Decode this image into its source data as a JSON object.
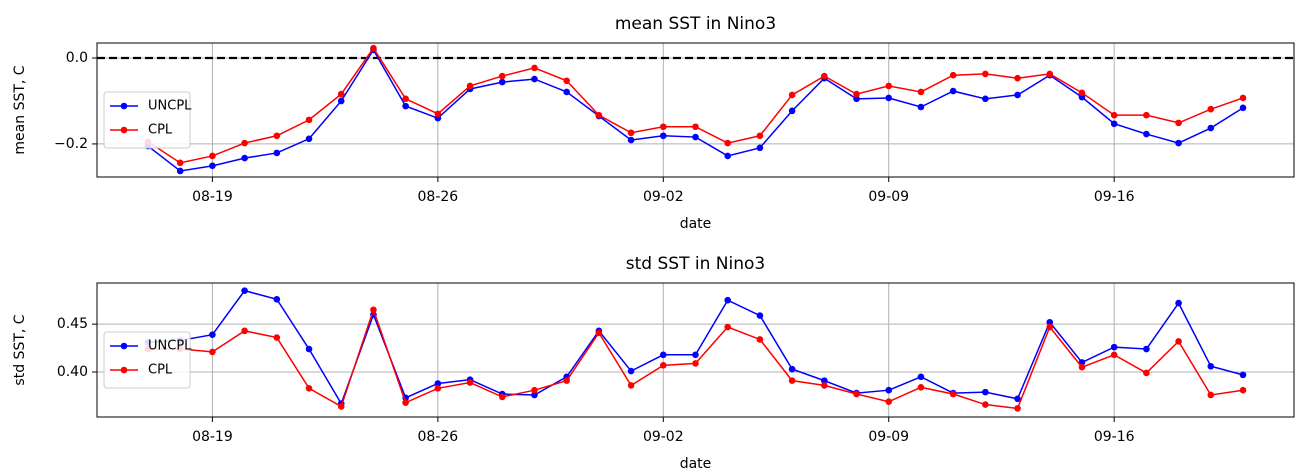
{
  "chart_data": [
    {
      "type": "line",
      "title": "mean SST in  Nino3",
      "xlabel": "date",
      "ylabel": "mean SST, C",
      "categories": [
        "08-17",
        "08-18",
        "08-19",
        "08-20",
        "08-21",
        "08-22",
        "08-23",
        "08-24",
        "08-25",
        "08-26",
        "08-27",
        "08-28",
        "08-29",
        "08-30",
        "08-31",
        "09-01",
        "09-02",
        "09-03",
        "09-04",
        "09-05",
        "09-06",
        "09-07",
        "09-08",
        "09-09",
        "09-10",
        "09-11",
        "09-12",
        "09-13",
        "09-14",
        "09-15",
        "09-16",
        "09-17",
        "09-18",
        "09-19",
        "09-20"
      ],
      "xticks": [
        "08-19",
        "08-26",
        "09-02",
        "09-09",
        "09-16"
      ],
      "series": [
        {
          "name": "UNCPL",
          "color": "#0000ff",
          "values": [
            -0.205,
            -0.263,
            -0.251,
            -0.233,
            -0.221,
            -0.188,
            -0.1,
            0.019,
            -0.112,
            -0.14,
            -0.072,
            -0.056,
            -0.049,
            -0.079,
            -0.135,
            -0.191,
            -0.181,
            -0.184,
            -0.228,
            -0.209,
            -0.123,
            -0.047,
            -0.095,
            -0.093,
            -0.114,
            -0.077,
            -0.095,
            -0.086,
            -0.04,
            -0.091,
            -0.153,
            -0.177,
            -0.198,
            -0.163,
            -0.116
          ]
        },
        {
          "name": "CPL",
          "color": "#ff0000",
          "values": [
            -0.195,
            -0.244,
            -0.228,
            -0.198,
            -0.181,
            -0.144,
            -0.084,
            0.023,
            -0.095,
            -0.13,
            -0.065,
            -0.042,
            -0.023,
            -0.053,
            -0.133,
            -0.174,
            -0.16,
            -0.16,
            -0.198,
            -0.181,
            -0.086,
            -0.042,
            -0.084,
            -0.065,
            -0.079,
            -0.04,
            -0.037,
            -0.047,
            -0.037,
            -0.081,
            -0.133,
            -0.133,
            -0.151,
            -0.119,
            -0.093
          ]
        }
      ],
      "ylim": [
        -0.277,
        0.035
      ],
      "yticks": [
        {
          "value": -0.2,
          "label": "−0.2"
        },
        {
          "value": 0,
          "label": "0.0"
        }
      ],
      "hline": 0,
      "grid": true,
      "legend": "center left"
    },
    {
      "type": "line",
      "title": "std SST in  Nino3",
      "xlabel": "date",
      "ylabel": "std SST, C",
      "categories": [
        "08-17",
        "08-18",
        "08-19",
        "08-20",
        "08-21",
        "08-22",
        "08-23",
        "08-24",
        "08-25",
        "08-26",
        "08-27",
        "08-28",
        "08-29",
        "08-30",
        "08-31",
        "09-01",
        "09-02",
        "09-03",
        "09-04",
        "09-05",
        "09-06",
        "09-07",
        "09-08",
        "09-09",
        "09-10",
        "09-11",
        "09-12",
        "09-13",
        "09-14",
        "09-15",
        "09-16",
        "09-17",
        "09-18",
        "09-19",
        "09-20"
      ],
      "xticks": [
        "08-19",
        "08-26",
        "09-02",
        "09-09",
        "09-16"
      ],
      "series": [
        {
          "name": "UNCPL",
          "color": "#0000ff",
          "values": [
            0.431,
            0.433,
            0.439,
            0.485,
            0.476,
            0.424,
            0.367,
            0.46,
            0.373,
            0.388,
            0.392,
            0.377,
            0.376,
            0.395,
            0.443,
            0.401,
            0.418,
            0.418,
            0.475,
            0.459,
            0.403,
            0.391,
            0.378,
            0.381,
            0.395,
            0.378,
            0.379,
            0.372,
            0.452,
            0.41,
            0.426,
            0.424,
            0.472,
            0.406,
            0.397
          ]
        },
        {
          "name": "CPL",
          "color": "#ff0000",
          "values": [
            0.424,
            0.424,
            0.421,
            0.443,
            0.436,
            0.383,
            0.364,
            0.465,
            0.368,
            0.383,
            0.389,
            0.374,
            0.381,
            0.391,
            0.441,
            0.386,
            0.407,
            0.409,
            0.447,
            0.434,
            0.391,
            0.386,
            0.377,
            0.369,
            0.384,
            0.377,
            0.366,
            0.362,
            0.447,
            0.405,
            0.418,
            0.399,
            0.432,
            0.376,
            0.381
          ]
        }
      ],
      "ylim": [
        0.353,
        0.493
      ],
      "yticks": [
        {
          "value": 0.4,
          "label": "0.40"
        },
        {
          "value": 0.45,
          "label": "0.45"
        }
      ],
      "grid": true,
      "legend": "center left"
    }
  ]
}
